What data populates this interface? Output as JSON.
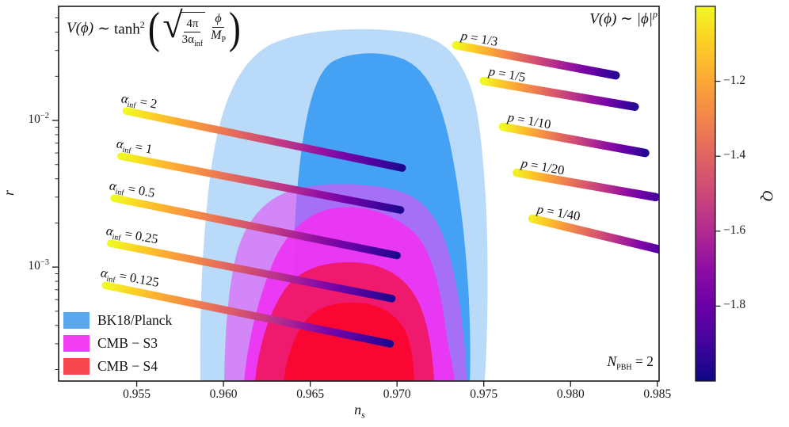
{
  "figure": {
    "title_left": {
      "V": "V(ϕ)",
      "sim": "∼",
      "fn": "tanh",
      "exp": "2",
      "lparen": "(",
      "radical": "√",
      "sqrt_num": "4π",
      "sqrt_den": "3α",
      "sqrt_den_sub": "inf",
      "num": "ϕ",
      "den": "M",
      "den_sub": "P",
      "rparen": ")"
    },
    "title_right": {
      "body": "V(ϕ) ∼ |ϕ|",
      "exp": "p"
    },
    "annotation": {
      "symbol": "N",
      "sub": "PBH",
      "rest": " = 2"
    }
  },
  "axes": {
    "xlabel": {
      "main": "n",
      "sub": "s"
    },
    "ylabel": "r",
    "x_range": [
      0.9505,
      0.9851
    ],
    "y_range": [
      0.000167,
      0.06
    ],
    "x_ticks": [
      {
        "label": "0.955",
        "value": 0.955
      },
      {
        "label": "0.960",
        "value": 0.96
      },
      {
        "label": "0.965",
        "value": 0.965
      },
      {
        "label": "0.970",
        "value": 0.97
      },
      {
        "label": "0.975",
        "value": 0.975
      },
      {
        "label": "0.980",
        "value": 0.98
      },
      {
        "label": "0.985",
        "value": 0.985
      }
    ],
    "y_ticks": [
      {
        "base": "10",
        "exp": "−2",
        "value": 0.01
      },
      {
        "base": "10",
        "exp": "−3",
        "value": 0.001
      }
    ]
  },
  "legend": {
    "items": [
      {
        "label": "BK18/Planck",
        "color": "#5BA7F0"
      },
      {
        "label": "CMB − S3",
        "color": "#F23EF2"
      },
      {
        "label": "CMB − S4",
        "color": "#F8474E"
      }
    ]
  },
  "colorbar": {
    "label": "Q",
    "range": [
      -2.0,
      -1.0
    ],
    "ticks": [
      {
        "label": "−1.2",
        "value": -1.2
      },
      {
        "label": "−1.4",
        "value": -1.4
      },
      {
        "label": "−1.6",
        "value": -1.6
      },
      {
        "label": "−1.8",
        "value": -1.8
      }
    ],
    "colormap": [
      "#0d0887",
      "#41049d",
      "#6a00a8",
      "#8f0da4",
      "#b12a90",
      "#cc4778",
      "#e16462",
      "#f2844b",
      "#fca636",
      "#fcce25",
      "#f0f921"
    ]
  },
  "contour_colors": {
    "bk18_outer": "#5AA7F0",
    "bk18_inner": "#2F96F2",
    "s3_outer": "#E052F5",
    "s3_inner": "#EE33F2",
    "s4_outer": "#F01455",
    "s4_inner": "#F9062F"
  },
  "chart_data": {
    "type": "scatter",
    "xlabel": "n_s",
    "ylabel": "r",
    "x_scale": "linear",
    "y_scale": "log",
    "xlim": [
      0.9505,
      0.9851
    ],
    "ylim": [
      0.000167,
      0.06
    ],
    "colorbar": {
      "label": "Q",
      "range": [
        -2.0,
        -1.0
      ]
    },
    "contours": [
      {
        "name": "BK18/Planck",
        "color": "#5BA7F0",
        "levels": [
          {
            "level": "outer",
            "ns_extent": [
              0.9587,
              0.9751
            ],
            "r_top": 0.039
          },
          {
            "level": "inner",
            "ns_extent": [
              0.964,
              0.9742
            ],
            "r_top": 0.027
          }
        ]
      },
      {
        "name": "CMB − S3",
        "color": "#F23EF2",
        "levels": [
          {
            "level": "outer",
            "ns_extent": [
              0.96,
              0.974
            ],
            "r_top": 0.0039
          },
          {
            "level": "inner",
            "ns_extent": [
              0.9612,
              0.9735
            ],
            "r_top": 0.0025
          }
        ]
      },
      {
        "name": "CMB − S4",
        "color": "#F8474E",
        "levels": [
          {
            "level": "outer",
            "ns_extent": [
              0.9618,
              0.9721
            ],
            "r_top": 0.0011
          },
          {
            "level": "inner",
            "ns_extent": [
              0.9635,
              0.971
            ],
            "r_top": 0.00058
          }
        ]
      }
    ],
    "series": [
      {
        "family": "alpha",
        "label_pre": "α",
        "label_sub": "inf",
        "label_post": " = 2",
        "x": [
          0.9544,
          0.9703
        ],
        "y": [
          0.0116,
          0.00474
        ],
        "q": [
          -1.0,
          -1.97
        ]
      },
      {
        "family": "alpha",
        "label_pre": "α",
        "label_sub": "inf",
        "label_post": " = 1",
        "x": [
          0.9541,
          0.9702
        ],
        "y": [
          0.0057,
          0.00245
        ],
        "q": [
          -1.0,
          -1.97
        ]
      },
      {
        "family": "alpha",
        "label_pre": "α",
        "label_sub": "inf",
        "label_post": " = 0.5",
        "x": [
          0.9537,
          0.97
        ],
        "y": [
          0.00295,
          0.0012
        ],
        "q": [
          -1.0,
          -1.97
        ]
      },
      {
        "family": "alpha",
        "label_pre": "α",
        "label_sub": "inf",
        "label_post": " = 0.25",
        "x": [
          0.9535,
          0.9697
        ],
        "y": [
          0.00145,
          0.00061
        ],
        "q": [
          -1.0,
          -1.97
        ]
      },
      {
        "family": "alpha",
        "label_pre": "α",
        "label_sub": "inf",
        "label_post": " = 0.125",
        "x": [
          0.9532,
          0.9696
        ],
        "y": [
          0.00075,
          0.0003
        ],
        "q": [
          -1.0,
          -1.97
        ]
      },
      {
        "family": "p",
        "label_pre": "p",
        "label_sub": "",
        "label_post": " = 1/3",
        "x": [
          0.9734,
          0.9826
        ],
        "y": [
          0.0326,
          0.0203
        ],
        "q": [
          -1.0,
          -1.95
        ]
      },
      {
        "family": "p",
        "label_pre": "p",
        "label_sub": "",
        "label_post": " = 1/5",
        "x": [
          0.975,
          0.9837
        ],
        "y": [
          0.0186,
          0.0124
        ],
        "q": [
          -1.0,
          -1.95
        ]
      },
      {
        "family": "p",
        "label_pre": "p",
        "label_sub": "",
        "label_post": " = 1/10",
        "x": [
          0.9761,
          0.9843
        ],
        "y": [
          0.00905,
          0.006
        ],
        "q": [
          -1.0,
          -1.95
        ]
      },
      {
        "family": "p",
        "label_pre": "p",
        "label_sub": "",
        "label_post": " = 1/20",
        "x": [
          0.9769,
          0.9849
        ],
        "y": [
          0.0044,
          0.003
        ],
        "q": [
          -1.02,
          -1.88
        ]
      },
      {
        "family": "p",
        "label_pre": "p",
        "label_sub": "",
        "label_post": " = 1/40",
        "x": [
          0.9778,
          0.9851
        ],
        "y": [
          0.00214,
          0.00132
        ],
        "q": [
          -1.03,
          -1.86
        ]
      }
    ]
  }
}
